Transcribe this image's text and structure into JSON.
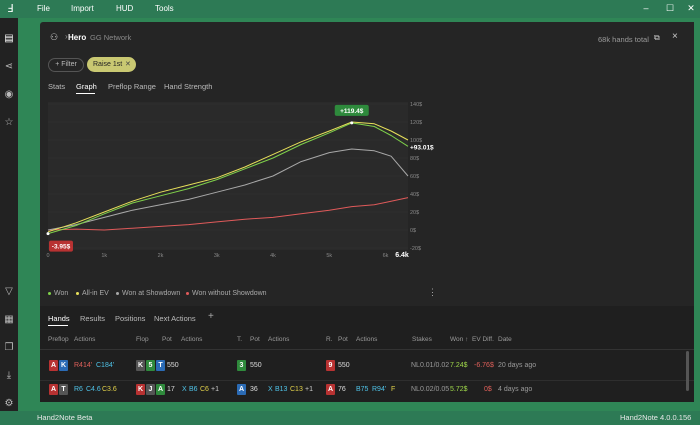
{
  "titlebar": {
    "menu": [
      "File",
      "Import",
      "HUD",
      "Tools"
    ]
  },
  "panel": {
    "hero": "Hero",
    "network": "GG Network",
    "hands_total": "68k hands total",
    "filter_label": "Filter",
    "chip_label": "Raise 1st",
    "tabs": [
      "Stats",
      "Graph",
      "Preflop Range",
      "Hand Strength"
    ]
  },
  "chart_data": {
    "type": "line",
    "x_ticks": [
      "0",
      "1k",
      "2k",
      "3k",
      "4k",
      "5k",
      "6k"
    ],
    "x_end_label": "6.4k",
    "y_ticks": [
      "140$",
      "120$",
      "100$",
      "80$",
      "60$",
      "40$",
      "20$",
      "0$",
      "-20$"
    ],
    "ylim": [
      -20,
      140
    ],
    "xlim": [
      0,
      6400
    ],
    "max_label": "+119.4$",
    "end_label": "+93.01$",
    "min_label": "-3.95$",
    "legend_position": "bottom-left",
    "series": [
      {
        "name": "Won",
        "color": "#7fd14a",
        "x": [
          0,
          500,
          1000,
          1500,
          2000,
          2500,
          3000,
          3500,
          4000,
          4500,
          5000,
          5400,
          5800,
          6100,
          6400
        ],
        "values": [
          -4,
          5,
          18,
          30,
          38,
          46,
          56,
          68,
          80,
          95,
          108,
          119,
          115,
          105,
          93
        ]
      },
      {
        "name": "All-in EV",
        "color": "#e8e05a",
        "x": [
          0,
          500,
          1000,
          1500,
          2000,
          2500,
          3000,
          3500,
          4000,
          4500,
          5000,
          5400,
          5800,
          6100,
          6400
        ],
        "values": [
          -2,
          8,
          20,
          32,
          42,
          50,
          58,
          70,
          84,
          98,
          110,
          120,
          118,
          110,
          100
        ]
      },
      {
        "name": "Won at Showdown",
        "color": "#a8a8a8",
        "x": [
          0,
          500,
          1000,
          1500,
          2000,
          2500,
          3000,
          3500,
          4000,
          4500,
          5000,
          5400,
          5800,
          6100,
          6400
        ],
        "values": [
          0,
          6,
          14,
          22,
          28,
          34,
          42,
          50,
          60,
          76,
          86,
          90,
          88,
          82,
          60
        ]
      },
      {
        "name": "Won without Showdown",
        "color": "#e05a5a",
        "x": [
          0,
          500,
          1000,
          1500,
          2000,
          2500,
          3000,
          3500,
          4000,
          4500,
          5000,
          5400,
          5800,
          6100,
          6400
        ],
        "values": [
          0,
          1,
          0,
          2,
          4,
          6,
          9,
          12,
          14,
          18,
          22,
          26,
          28,
          32,
          36
        ]
      }
    ]
  },
  "hands_tabs": [
    "Hands",
    "Results",
    "Positions",
    "Next Actions"
  ],
  "hands_table": {
    "headers": {
      "preflop": "Preflop",
      "actions": "Actions",
      "flop": "Flop",
      "pot": "Pot",
      "turn": "T.",
      "river": "R.",
      "stakes": "Stakes",
      "won": "Won",
      "ev_diff": "EV Diff.",
      "date": "Date"
    },
    "rows": [
      {
        "preflop_cards": [
          "A",
          "K"
        ],
        "pf_act1": "R414",
        "pf_act2": "C184",
        "flop_cards": [
          "K",
          "5",
          "T"
        ],
        "flop_pot": "550",
        "turn_card": "3",
        "turn_pot": "550",
        "river_card": "9",
        "river_pot": "550",
        "stakes": "NL0.01/0.02",
        "won": "7.24$",
        "ev_diff": "-6.76$",
        "date": "20 days ago"
      },
      {
        "preflop_cards": [
          "A",
          "T"
        ],
        "pf_act1": "R6",
        "pf_act2": "C4.6",
        "pf_act3": "C3.6",
        "flop_cards": [
          "K",
          "J",
          "A"
        ],
        "flop_pot": "17",
        "flop_act1": "X",
        "flop_act2": "B6",
        "flop_act3": "C6",
        "flop_act4": "+1",
        "turn_card": "A",
        "turn_pot": "36",
        "turn_act1": "X",
        "turn_act2": "B13",
        "turn_act3": "C13",
        "turn_act4": "+1",
        "river_card": "A",
        "river_pot": "76",
        "river_act1": "B75",
        "river_act2": "R94",
        "river_act3": "F",
        "stakes": "NL0.02/0.05",
        "won": "5.72$",
        "ev_diff": "0$",
        "date": "4 days ago"
      }
    ]
  },
  "statusbar": {
    "left": "Hand2Note Beta",
    "right": "Hand2Note 4.0.0.156"
  }
}
